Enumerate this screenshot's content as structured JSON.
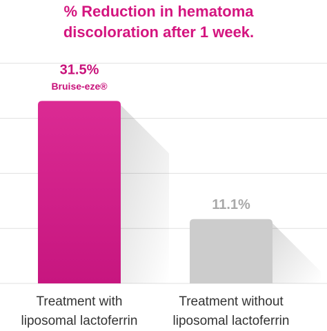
{
  "chart_data": {
    "type": "bar",
    "title": "% Reduction in hematoma discoloration after 1 week.",
    "categories": [
      "Treatment with liposomal lactoferrin",
      "Treatment without liposomal lactoferrin"
    ],
    "values": [
      31.5,
      11.1
    ],
    "value_labels": [
      "31.5%",
      "11.1%"
    ],
    "colors": [
      "#d8188a",
      "#cccccc"
    ],
    "label_colors": [
      "#c8117a",
      "#a9a9a9"
    ],
    "annotation": "Bruise-eze®",
    "ylim": [
      0,
      40
    ],
    "yticks": [
      0,
      9.5,
      19,
      28.5,
      38
    ],
    "grid": true
  }
}
